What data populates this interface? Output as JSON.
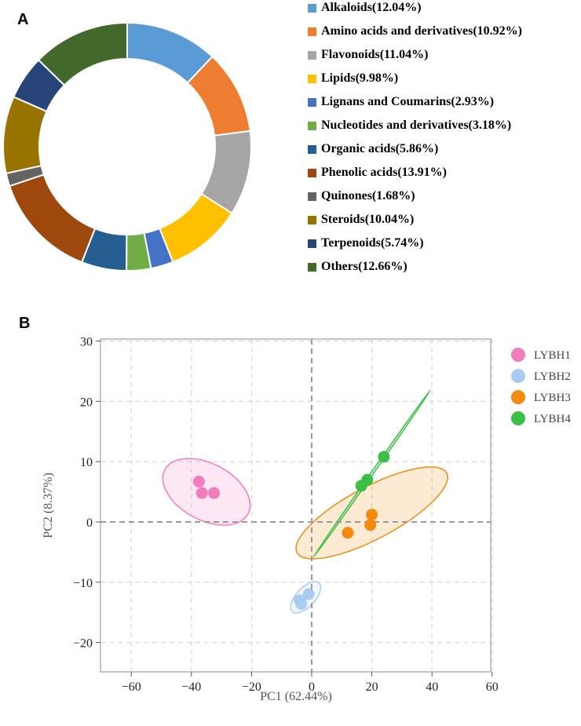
{
  "chart_data": [
    {
      "type": "pie",
      "panel": "A",
      "donut": true,
      "slices": [
        {
          "label": "Alkaloids(12.04%)",
          "value": 12.04,
          "color": "#5B9BD5"
        },
        {
          "label": "Amino acids and derivatives(10.92%)",
          "value": 10.92,
          "color": "#ED7D31"
        },
        {
          "label": "Flavonoids(11.04%)",
          "value": 11.04,
          "color": "#A5A5A5"
        },
        {
          "label": "Lipids(9.98%)",
          "value": 9.98,
          "color": "#FFC000"
        },
        {
          "label": "Lignans and Coumarins(2.93%)",
          "value": 2.93,
          "color": "#4472C4"
        },
        {
          "label": "Nucleotides and derivatives(3.18%)",
          "value": 3.18,
          "color": "#70AD47"
        },
        {
          "label": "Organic acids(5.86%)",
          "value": 5.86,
          "color": "#255E91"
        },
        {
          "label": "Phenolic acids(13.91%)",
          "value": 13.91,
          "color": "#9E480E"
        },
        {
          "label": "Quinones(1.68%)",
          "value": 1.68,
          "color": "#636363"
        },
        {
          "label": "Steroids(10.04%)",
          "value": 10.04,
          "color": "#997300"
        },
        {
          "label": "Terpenoids(5.74%)",
          "value": 5.74,
          "color": "#264478"
        },
        {
          "label": "Others(12.66%)",
          "value": 12.66,
          "color": "#43682B"
        }
      ]
    },
    {
      "type": "scatter",
      "panel": "B",
      "xlabel": "PC1 (62.44%)",
      "ylabel": "PC2 (8.37%)",
      "xlim": [
        -70,
        60
      ],
      "ylim": [
        -27,
        30
      ],
      "xticks": [
        -60,
        -40,
        -20,
        0,
        20,
        40,
        60
      ],
      "yticks": [
        -20,
        -10,
        0,
        10,
        20,
        30
      ],
      "grid": true,
      "legend_position": "right",
      "series": [
        {
          "name": "LYBH1",
          "color": "#F27CBE",
          "points": [
            [
              -37.5,
              6.7
            ],
            [
              -36.5,
              4.8
            ],
            [
              -32.5,
              4.8
            ]
          ]
        },
        {
          "name": "LYBH2",
          "color": "#A9CBEF",
          "points": [
            [
              -4,
              -13
            ],
            [
              -3.5,
              -13.6
            ],
            [
              -1,
              -12
            ]
          ]
        },
        {
          "name": "LYBH3",
          "color": "#F28A0D",
          "points": [
            [
              12,
              -1.8
            ],
            [
              20,
              1.2
            ],
            [
              19.5,
              -0.5
            ]
          ]
        },
        {
          "name": "LYBH4",
          "color": "#3DBF47",
          "points": [
            [
              16.5,
              6.0
            ],
            [
              18.5,
              7.0
            ],
            [
              24,
              10.8
            ]
          ]
        }
      ]
    }
  ],
  "panels": {
    "a_letter": "A",
    "b_letter": "B"
  }
}
